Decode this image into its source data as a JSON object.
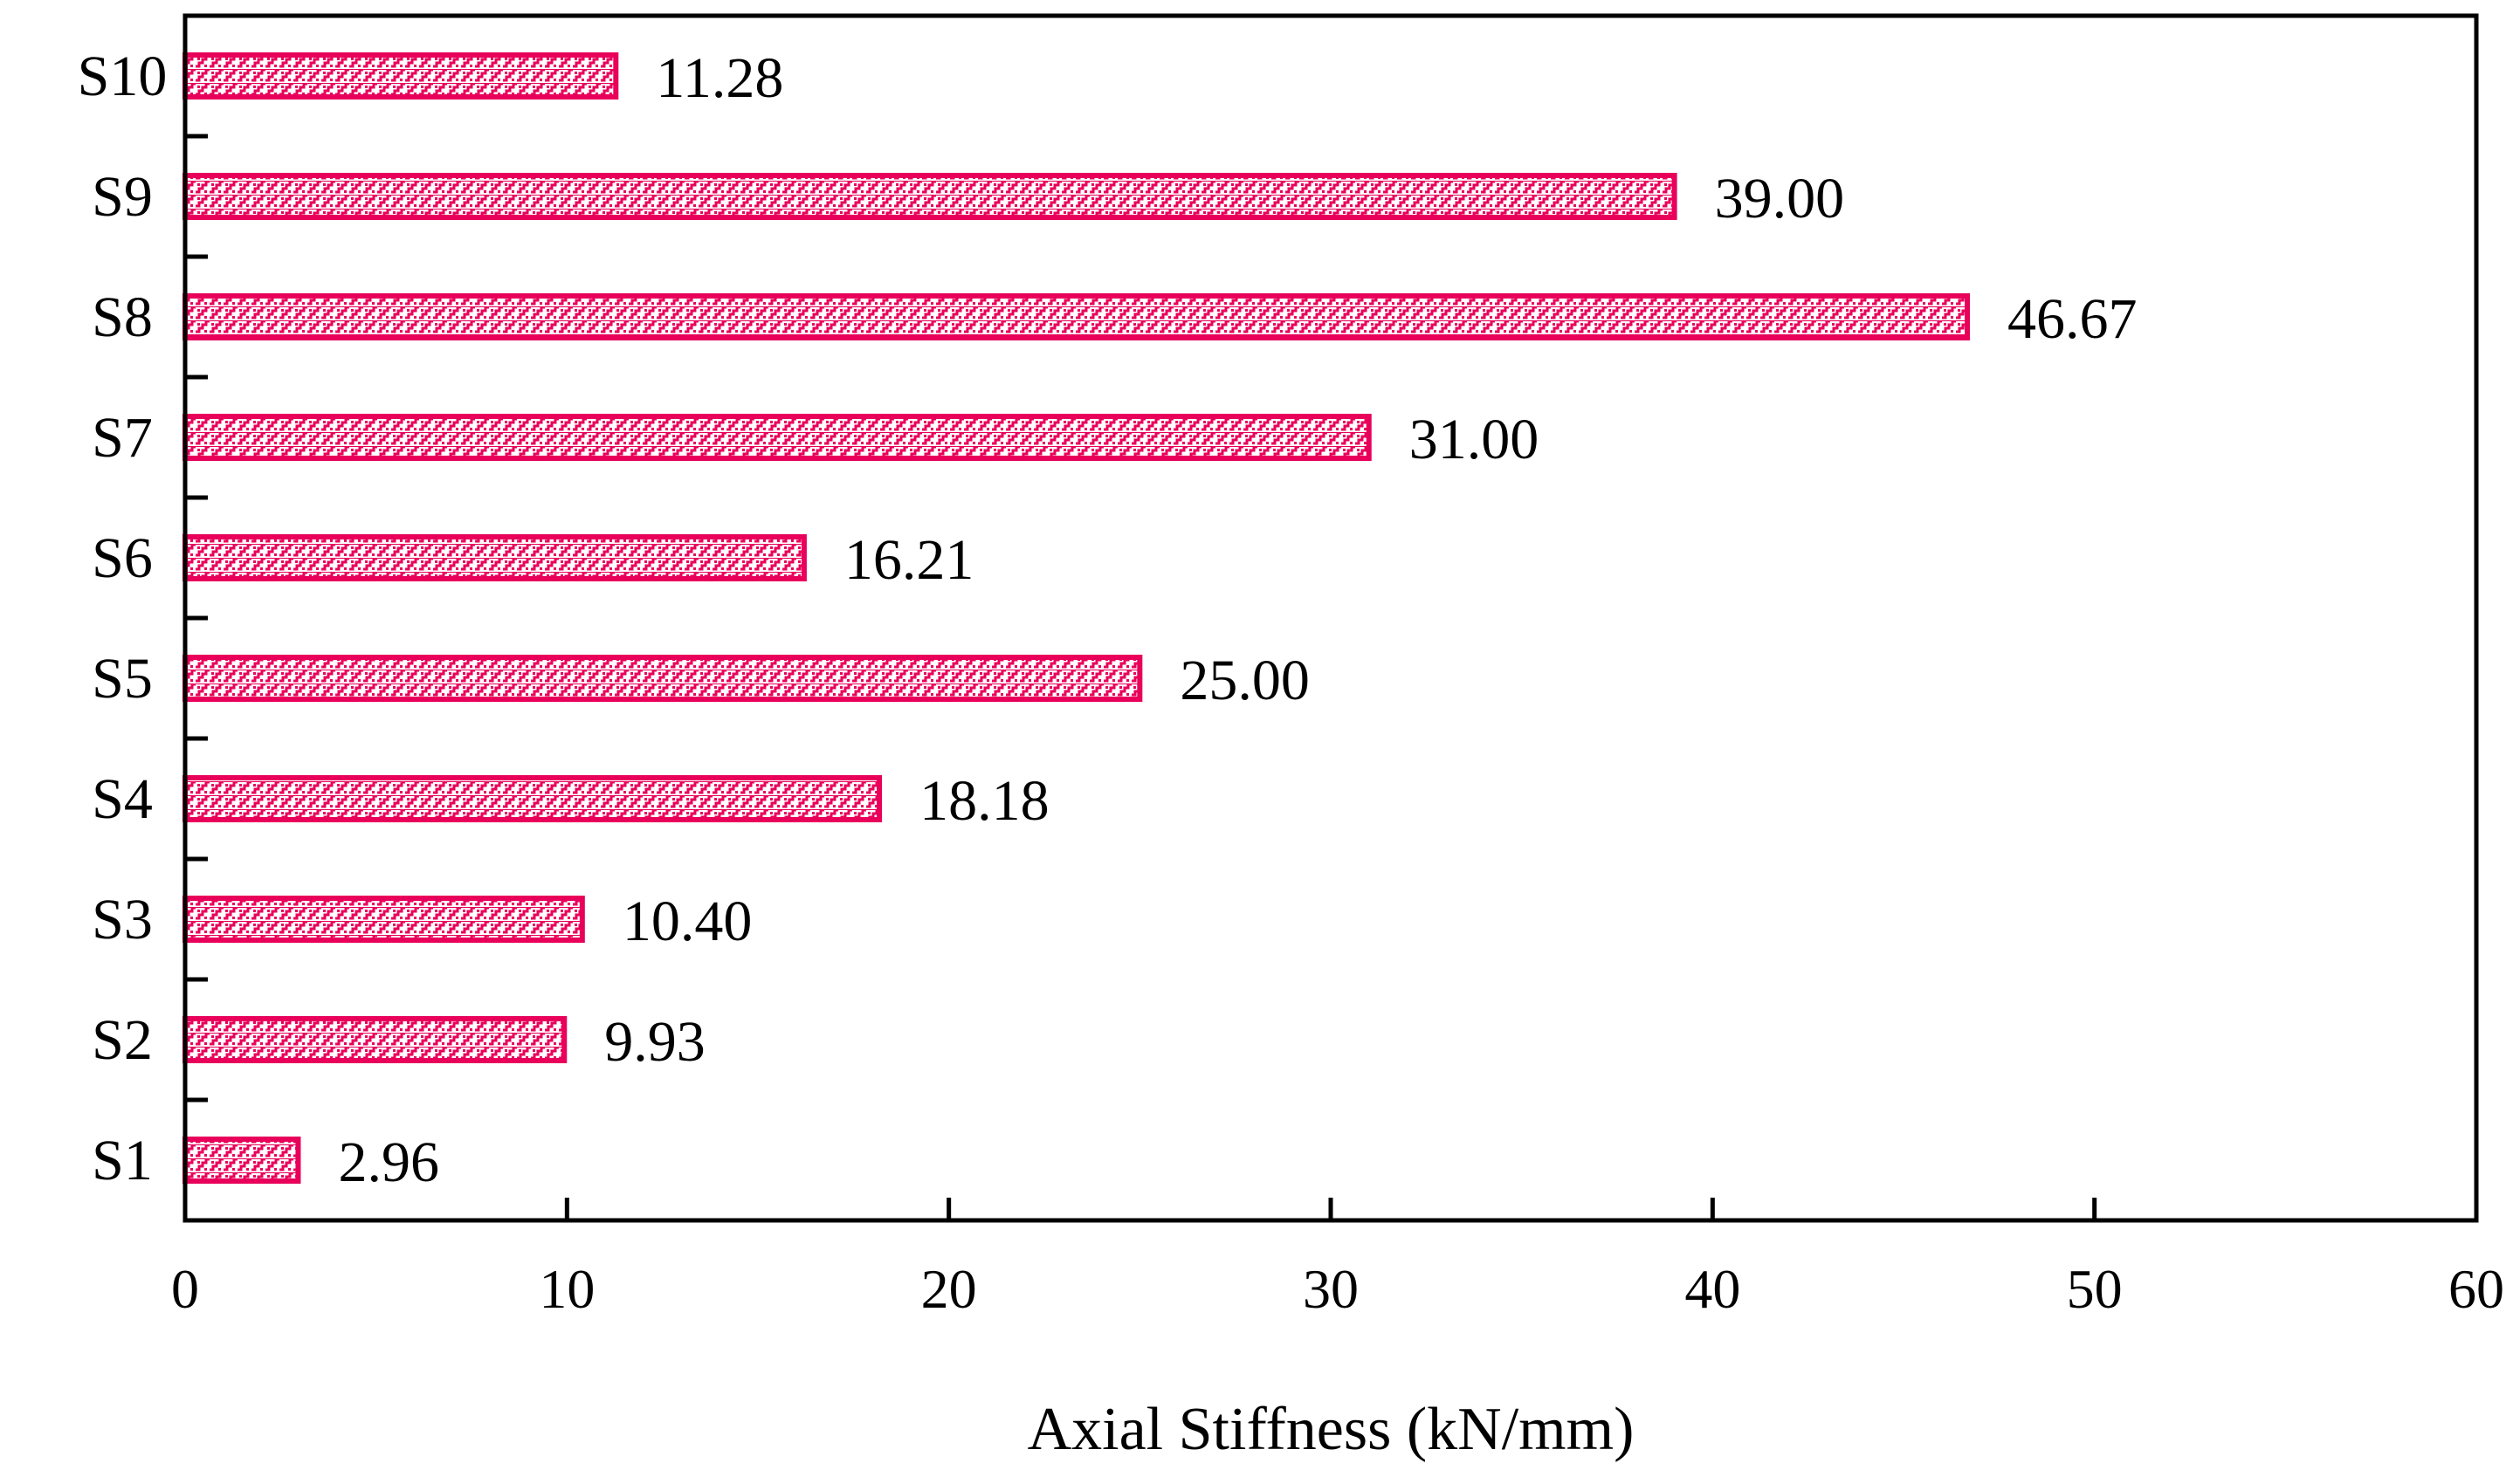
{
  "chart_data": {
    "type": "bar",
    "orientation": "horizontal",
    "categories": [
      "S1",
      "S2",
      "S3",
      "S4",
      "S5",
      "S6",
      "S7",
      "S8",
      "S9",
      "S10"
    ],
    "values": [
      2.96,
      9.93,
      10.4,
      18.18,
      25.0,
      16.21,
      31.0,
      46.67,
      39.0,
      11.28
    ],
    "value_labels": [
      "2.96",
      "9.93",
      "10.40",
      "18.18",
      "25.00",
      "16.21",
      "31.00",
      "46.67",
      "39.00",
      "11.28"
    ],
    "xlabel": "Axial Stiffness (kN/mm)",
    "ylabel": "",
    "title": "",
    "xlim": [
      0,
      60
    ],
    "xticks": [
      0,
      10,
      20,
      30,
      40,
      50,
      60
    ],
    "grid": false,
    "bar_color": "#e8005a",
    "bar_pattern": "hatched"
  }
}
